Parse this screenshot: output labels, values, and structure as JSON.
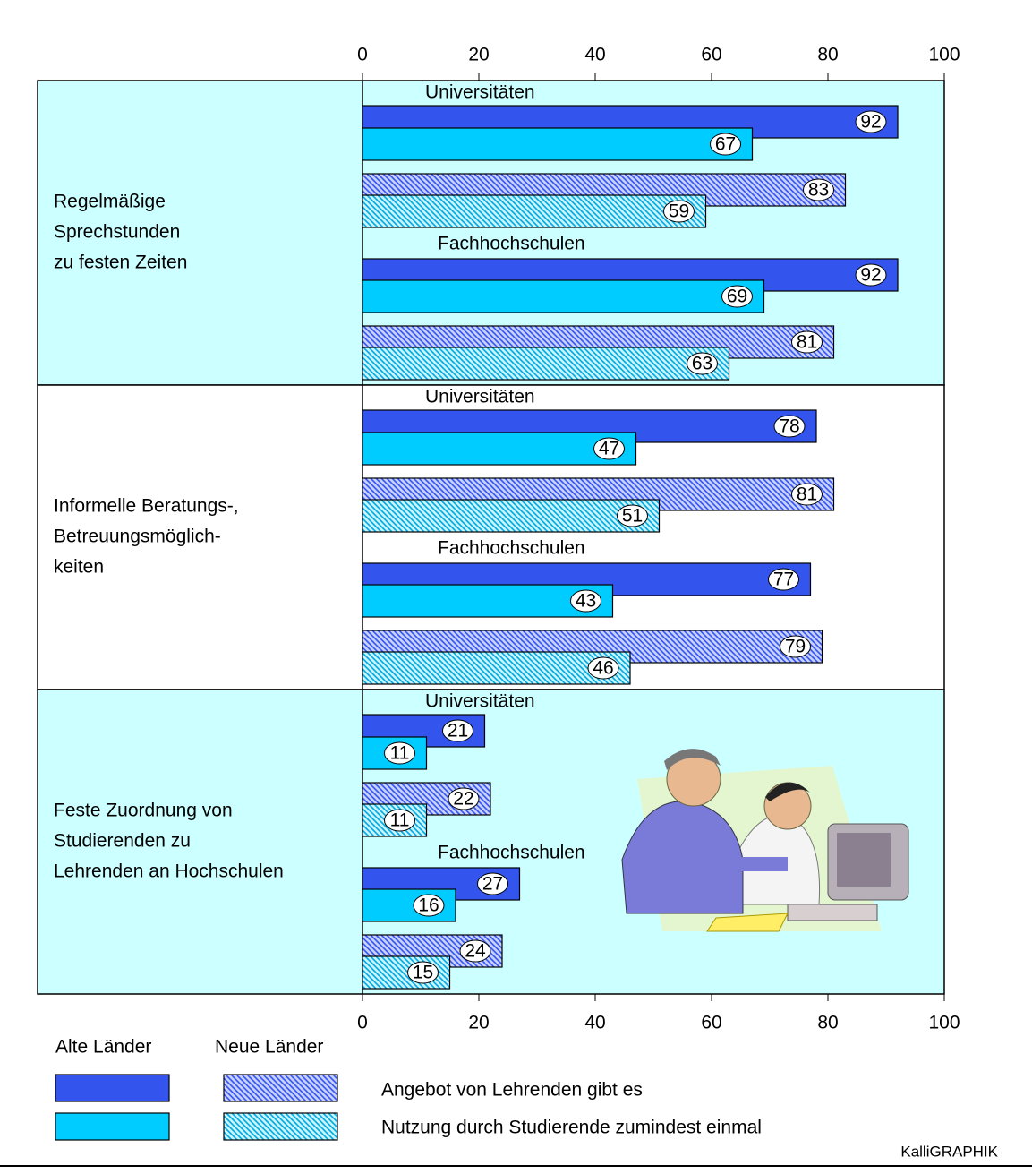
{
  "chart_data": {
    "type": "bar",
    "orientation": "horizontal",
    "xlim": [
      0,
      100
    ],
    "xticks": [
      0,
      20,
      40,
      60,
      80,
      100
    ],
    "groups": [
      {
        "label": [
          "Regelmäßige",
          "Sprechstunden",
          "zu festen Zeiten"
        ],
        "background": "#ccffff"
      },
      {
        "label": [
          "Informelle Beratungs-,",
          "Betreuungsmöglich-",
          "keiten"
        ],
        "background": "#ffffff"
      },
      {
        "label": [
          "Feste Zuordnung von",
          "Studierenden zu",
          "Lehrenden an Hochschulen"
        ],
        "background": "#ccffff"
      }
    ],
    "categories": [
      "Universitäten",
      "Fachhochschulen",
      "Universitäten",
      "Fachhochschulen",
      "Universitäten",
      "Fachhochschulen"
    ],
    "series": [
      {
        "color": "#3355ee",
        "hatch": false,
        "values": [
          92,
          92,
          78,
          77,
          21,
          27
        ]
      },
      {
        "color": "#00ccff",
        "hatch": false,
        "values": [
          67,
          69,
          47,
          43,
          11,
          16
        ]
      },
      {
        "color": "#3355ee",
        "hatch": true,
        "values": [
          83,
          81,
          81,
          79,
          22,
          24
        ]
      },
      {
        "color": "#00ccff",
        "hatch": true,
        "values": [
          59,
          63,
          51,
          46,
          11,
          15
        ]
      }
    ],
    "legend": {
      "columns": [
        "Alte Länder",
        "Neue Länder"
      ],
      "rows": [
        "Angebot von Lehrenden gibt es",
        "Nutzung durch Studierende zumindest einmal"
      ]
    },
    "credit": "KalliGRAPHIK"
  }
}
